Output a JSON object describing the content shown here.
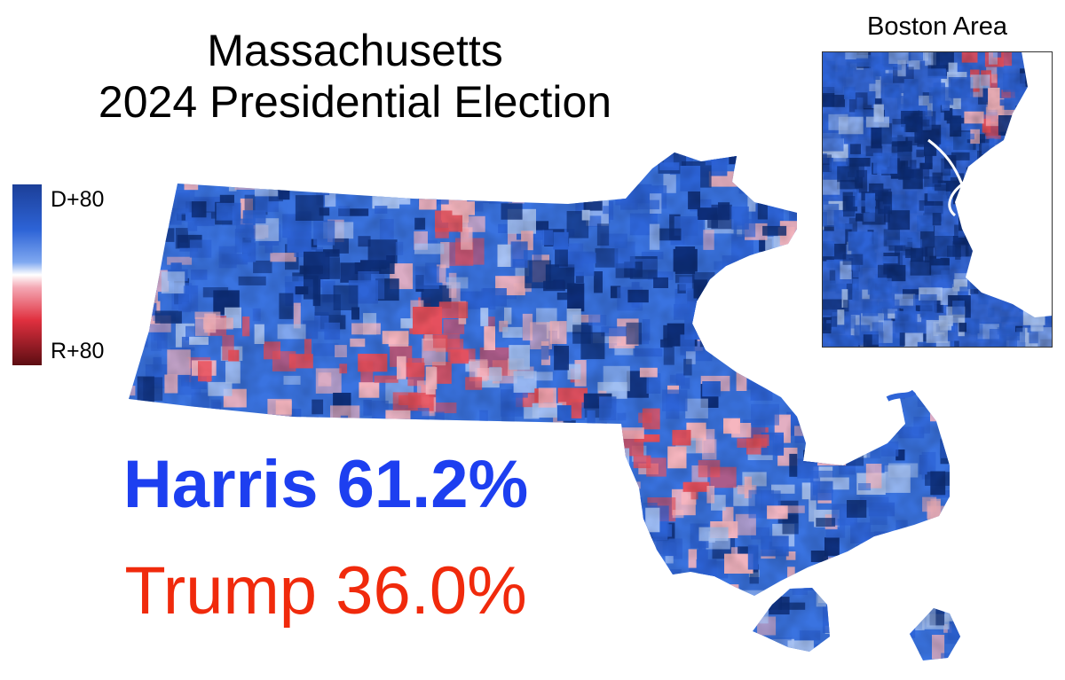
{
  "title": {
    "line1": "Massachusetts",
    "line2": "2024 Presidential Election"
  },
  "legend": {
    "top_label": "D+80",
    "bottom_label": "R+80"
  },
  "results": {
    "harris": {
      "text": "Harris 61.2%",
      "color": "#1d3ff0"
    },
    "trump": {
      "text": "Trump 36.0%",
      "color": "#f02a0c"
    }
  },
  "inset": {
    "title": "Boston Area"
  },
  "colors": {
    "dem_dark": "#0e2f7a",
    "dem": "#2d63d6",
    "dem_light": "#a9c4f4",
    "rep_light": "#f6b6bf",
    "rep": "#e8505c",
    "rep_dark": "#5c0d12"
  }
}
